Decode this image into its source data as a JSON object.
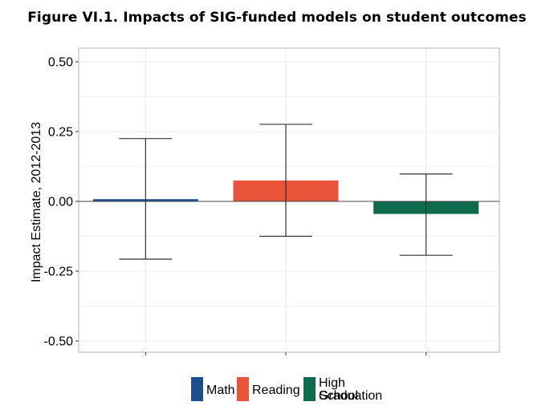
{
  "chart_data": {
    "type": "bar",
    "title": "Figure VI.1. Impacts of SIG-funded models on student outcomes",
    "ylabel": "Impact Estimate, 2012-2013",
    "xlabel": "",
    "ylim": [
      -0.55,
      0.55
    ],
    "yticks": [
      "0.50",
      "0.25",
      "0.00",
      "-0.25",
      "-0.50"
    ],
    "ytick_values": [
      0.5,
      0.25,
      0.0,
      -0.25,
      -0.5
    ],
    "grid": true,
    "legend_position": "bottom",
    "categories": [
      "Math",
      "Reading",
      "High School Graduation"
    ],
    "values": [
      0.008,
      0.075,
      -0.045
    ],
    "error_low": [
      -0.207,
      -0.125,
      -0.193
    ],
    "error_high": [
      0.225,
      0.276,
      0.098
    ],
    "colors": [
      "#1f4e8c",
      "#e8553a",
      "#0f6b4e"
    ],
    "legend": [
      {
        "lines": [
          "Math"
        ]
      },
      {
        "lines": [
          "Reading"
        ]
      },
      {
        "lines": [
          "High School",
          "Graduation"
        ]
      }
    ]
  }
}
